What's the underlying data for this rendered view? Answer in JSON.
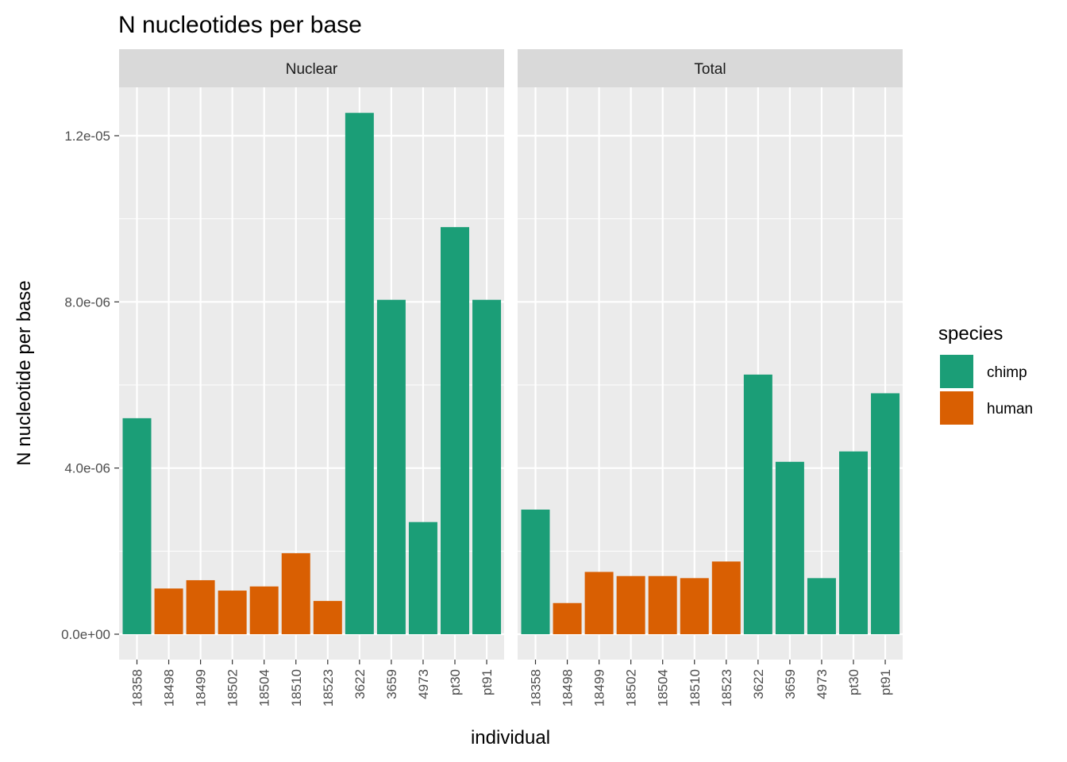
{
  "chart_data": {
    "type": "bar",
    "title": "N nucleotides per base",
    "xlabel": "individual",
    "ylabel": "N nucleotide per base",
    "ylim": [
      0,
      1.3e-05
    ],
    "y_ticks": [
      0,
      4e-06,
      8e-06,
      1.2e-05
    ],
    "y_tick_labels": [
      "0.0e+00",
      "4.0e-06",
      "8.0e-06",
      "1.2e-05"
    ],
    "grid": true,
    "legend_position": "right",
    "categories": [
      "18358",
      "18498",
      "18499",
      "18502",
      "18504",
      "18510",
      "18523",
      "3622",
      "3659",
      "4973",
      "pt30",
      "pt91"
    ],
    "species": [
      "chimp",
      "human",
      "human",
      "human",
      "human",
      "human",
      "human",
      "chimp",
      "chimp",
      "chimp",
      "chimp",
      "chimp"
    ],
    "legend": {
      "title": "species",
      "entries": [
        {
          "name": "chimp",
          "color": "#1b9e77"
        },
        {
          "name": "human",
          "color": "#d95f02"
        }
      ]
    },
    "panels": [
      {
        "name": "Nuclear",
        "values": [
          5.2e-06,
          1.1e-06,
          1.3e-06,
          1.05e-06,
          1.15e-06,
          1.95e-06,
          8e-07,
          1.255e-05,
          8.05e-06,
          2.7e-06,
          9.8e-06,
          8.05e-06
        ]
      },
      {
        "name": "Total",
        "values": [
          3e-06,
          7.5e-07,
          1.5e-06,
          1.4e-06,
          1.4e-06,
          1.35e-06,
          1.75e-06,
          6.25e-06,
          4.15e-06,
          1.35e-06,
          4.4e-06,
          5.8e-06
        ]
      }
    ]
  }
}
